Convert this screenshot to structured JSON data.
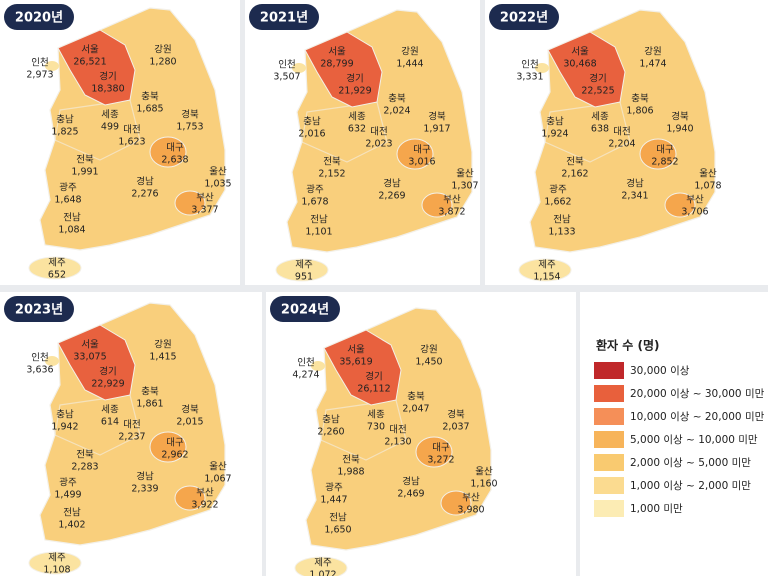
{
  "panels": [
    {
      "year": "2020년",
      "regions": [
        {
          "name": "인천",
          "value": "2,973"
        },
        {
          "name": "서울",
          "value": "26,521"
        },
        {
          "name": "경기",
          "value": "18,380"
        },
        {
          "name": "강원",
          "value": "1,280"
        },
        {
          "name": "충북",
          "value": "1,685"
        },
        {
          "name": "세종",
          "value": "499"
        },
        {
          "name": "충남",
          "value": "1,825"
        },
        {
          "name": "대전",
          "value": "1,623"
        },
        {
          "name": "경북",
          "value": "1,753"
        },
        {
          "name": "대구",
          "value": "2,638"
        },
        {
          "name": "전북",
          "value": "1,991"
        },
        {
          "name": "울산",
          "value": "1,035"
        },
        {
          "name": "광주",
          "value": "1,648"
        },
        {
          "name": "경남",
          "value": "2,276"
        },
        {
          "name": "부산",
          "value": "3,377"
        },
        {
          "name": "전남",
          "value": "1,084"
        },
        {
          "name": "제주",
          "value": "652"
        }
      ]
    },
    {
      "year": "2021년",
      "regions": [
        {
          "name": "인천",
          "value": "3,507"
        },
        {
          "name": "서울",
          "value": "28,799"
        },
        {
          "name": "경기",
          "value": "21,929"
        },
        {
          "name": "강원",
          "value": "1,444"
        },
        {
          "name": "충북",
          "value": "2,024"
        },
        {
          "name": "세종",
          "value": "632"
        },
        {
          "name": "충남",
          "value": "2,016"
        },
        {
          "name": "대전",
          "value": "2,023"
        },
        {
          "name": "경북",
          "value": "1,917"
        },
        {
          "name": "대구",
          "value": "3,016"
        },
        {
          "name": "전북",
          "value": "2,152"
        },
        {
          "name": "울산",
          "value": "1,307"
        },
        {
          "name": "광주",
          "value": "1,678"
        },
        {
          "name": "경남",
          "value": "2,269"
        },
        {
          "name": "부산",
          "value": "3,872"
        },
        {
          "name": "전남",
          "value": "1,101"
        },
        {
          "name": "제주",
          "value": "951"
        }
      ]
    },
    {
      "year": "2022년",
      "regions": [
        {
          "name": "인천",
          "value": "3,331"
        },
        {
          "name": "서울",
          "value": "30,468"
        },
        {
          "name": "경기",
          "value": "22,525"
        },
        {
          "name": "강원",
          "value": "1,474"
        },
        {
          "name": "충북",
          "value": "1,806"
        },
        {
          "name": "세종",
          "value": "638"
        },
        {
          "name": "충남",
          "value": "1,924"
        },
        {
          "name": "대전",
          "value": "2,204"
        },
        {
          "name": "경북",
          "value": "1,940"
        },
        {
          "name": "대구",
          "value": "2,852"
        },
        {
          "name": "전북",
          "value": "2,162"
        },
        {
          "name": "울산",
          "value": "1,078"
        },
        {
          "name": "광주",
          "value": "1,662"
        },
        {
          "name": "경남",
          "value": "2,341"
        },
        {
          "name": "부산",
          "value": "3,706"
        },
        {
          "name": "전남",
          "value": "1,133"
        },
        {
          "name": "제주",
          "value": "1,154"
        }
      ]
    },
    {
      "year": "2023년",
      "regions": [
        {
          "name": "인천",
          "value": "3,636"
        },
        {
          "name": "서울",
          "value": "33,075"
        },
        {
          "name": "경기",
          "value": "22,929"
        },
        {
          "name": "강원",
          "value": "1,415"
        },
        {
          "name": "충북",
          "value": "1,861"
        },
        {
          "name": "세종",
          "value": "614"
        },
        {
          "name": "충남",
          "value": "1,942"
        },
        {
          "name": "대전",
          "value": "2,237"
        },
        {
          "name": "경북",
          "value": "2,015"
        },
        {
          "name": "대구",
          "value": "2,962"
        },
        {
          "name": "전북",
          "value": "2,283"
        },
        {
          "name": "울산",
          "value": "1,067"
        },
        {
          "name": "광주",
          "value": "1,499"
        },
        {
          "name": "경남",
          "value": "2,339"
        },
        {
          "name": "부산",
          "value": "3,922"
        },
        {
          "name": "전남",
          "value": "1,402"
        },
        {
          "name": "제주",
          "value": "1,108"
        }
      ]
    },
    {
      "year": "2024년",
      "regions": [
        {
          "name": "인천",
          "value": "4,274"
        },
        {
          "name": "서울",
          "value": "35,619"
        },
        {
          "name": "경기",
          "value": "26,112"
        },
        {
          "name": "강원",
          "value": "1,450"
        },
        {
          "name": "충북",
          "value": "2,047"
        },
        {
          "name": "세종",
          "value": "730"
        },
        {
          "name": "충남",
          "value": "2,260"
        },
        {
          "name": "대전",
          "value": "2,130"
        },
        {
          "name": "경북",
          "value": "2,037"
        },
        {
          "name": "대구",
          "value": "3,272"
        },
        {
          "name": "전북",
          "value": "1,988"
        },
        {
          "name": "울산",
          "value": "1,160"
        },
        {
          "name": "광주",
          "value": "1,447"
        },
        {
          "name": "경남",
          "value": "2,469"
        },
        {
          "name": "부산",
          "value": "3,980"
        },
        {
          "name": "전남",
          "value": "1,650"
        },
        {
          "name": "제주",
          "value": "1,072"
        }
      ]
    }
  ],
  "legend": {
    "title": "환자 수 (명)",
    "items": [
      {
        "label": "30,000 이상",
        "color": "#c0282a"
      },
      {
        "label": "20,000 이상 ~ 30,000 미만",
        "color": "#e8603c"
      },
      {
        "label": "10,000 이상 ~ 20,000 미만",
        "color": "#f58f58"
      },
      {
        "label": "5,000 이상 ~ 10,000 미만",
        "color": "#f7b45a"
      },
      {
        "label": "2,000 이상 ~ 5,000 미만",
        "color": "#f9ca70"
      },
      {
        "label": "1,000 이상 ~ 2,000 미만",
        "color": "#fbdb90"
      },
      {
        "label": "1,000 미만",
        "color": "#fcecb4"
      }
    ]
  }
}
